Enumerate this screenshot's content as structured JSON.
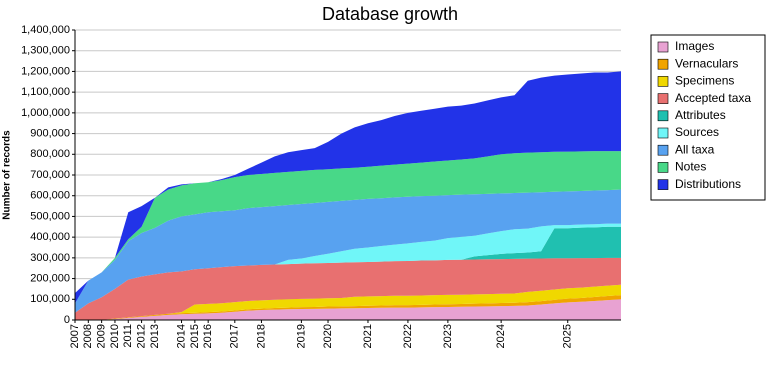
{
  "chart_data": {
    "type": "stacked-area",
    "title": "Database growth",
    "y_label": "Number of records",
    "categories": [
      "2007",
      "2008",
      "2009",
      "2010",
      "2011",
      "2012",
      "2013",
      null,
      "2014",
      "2015",
      "2016",
      null,
      "2017",
      null,
      "2018",
      null,
      null,
      "2019",
      null,
      "2020",
      null,
      null,
      "2021",
      null,
      null,
      "2022",
      null,
      null,
      "2023",
      null,
      null,
      null,
      "2024",
      null,
      null,
      null,
      null,
      "2025",
      null,
      null,
      null,
      null
    ],
    "ylim": [
      0,
      1400000
    ],
    "yticks": [
      0,
      {
        "value": 100000,
        "label": "100,000"
      },
      {
        "value": 200000,
        "label": "200,000"
      },
      {
        "value": 300000,
        "label": "300,000"
      },
      {
        "value": 400000,
        "label": "400,000"
      },
      {
        "value": 500000,
        "label": "500,000"
      },
      {
        "value": 600000,
        "label": "600,000"
      },
      {
        "value": 700000,
        "label": "700,000"
      },
      {
        "value": 800000,
        "label": "800,000"
      },
      {
        "value": 900000,
        "label": "900,000"
      },
      {
        "value": 1000000,
        "label": "1,000,000"
      },
      {
        "value": 1100000,
        "label": "1,100,000"
      },
      {
        "value": 1200000,
        "label": "1,200,000"
      },
      {
        "value": 1300000,
        "label": "1,300,000"
      },
      {
        "value": 1400000,
        "label": "1,400,000"
      }
    ],
    "grid": true,
    "legend": "right",
    "series": [
      {
        "name": "Images",
        "color": "#e8a2d2",
        "values": [
          0,
          0,
          0,
          5000,
          10000,
          15000,
          20000,
          25000,
          28000,
          30000,
          32000,
          35000,
          40000,
          45000,
          48000,
          50000,
          52000,
          53000,
          54000,
          55000,
          56000,
          57000,
          58000,
          59000,
          60000,
          60000,
          61000,
          62000,
          63000,
          64000,
          65000,
          66000,
          67000,
          68000,
          70000,
          75000,
          80000,
          85000,
          88000,
          92000,
          96000,
          100000
        ]
      },
      {
        "name": "Vernaculars",
        "color": "#f0a400",
        "values": [
          0,
          0,
          0,
          2000,
          3000,
          4000,
          5000,
          5000,
          5000,
          5000,
          6000,
          6000,
          6000,
          7000,
          7000,
          8000,
          8000,
          9000,
          9000,
          10000,
          10000,
          10000,
          11000,
          11000,
          12000,
          12000,
          12000,
          13000,
          13000,
          13000,
          14000,
          14000,
          15000,
          15000,
          16000,
          16000,
          17000,
          18000,
          18000,
          19000,
          20000,
          20000
        ]
      },
      {
        "name": "Specimens",
        "color": "#f0d800",
        "values": [
          0,
          0,
          0,
          0,
          0,
          0,
          0,
          0,
          5000,
          40000,
          40000,
          40000,
          40000,
          40000,
          40000,
          40000,
          40000,
          40000,
          40000,
          40000,
          40000,
          45000,
          45000,
          45000,
          45000,
          45000,
          45000,
          45000,
          45000,
          45000,
          45000,
          45000,
          45000,
          45000,
          50000,
          50000,
          50000,
          50000,
          50000,
          50000,
          50000,
          50000
        ]
      },
      {
        "name": "Accepted taxa",
        "color": "#e87070",
        "values": [
          35000,
          80000,
          110000,
          143000,
          182000,
          191000,
          195000,
          200000,
          197000,
          170000,
          172000,
          174000,
          174000,
          171000,
          171000,
          170000,
          170000,
          170000,
          171000,
          170000,
          171000,
          167000,
          166000,
          167000,
          167000,
          168000,
          169000,
          168000,
          169000,
          169000,
          168000,
          168000,
          167000,
          167000,
          160000,
          156000,
          151000,
          145000,
          143000,
          138000,
          134000,
          130000
        ]
      },
      {
        "name": "Attributes",
        "color": "#20c0b0",
        "values": [
          0,
          0,
          0,
          0,
          0,
          0,
          0,
          0,
          0,
          0,
          0,
          0,
          0,
          0,
          0,
          0,
          0,
          0,
          0,
          0,
          0,
          0,
          0,
          0,
          0,
          0,
          0,
          0,
          0,
          0,
          15000,
          20000,
          25000,
          28000,
          30000,
          35000,
          145000,
          145000,
          147000,
          148000,
          150000,
          150000
        ]
      },
      {
        "name": "Sources",
        "color": "#70f6f8",
        "values": [
          0,
          0,
          0,
          0,
          0,
          0,
          0,
          0,
          0,
          0,
          0,
          0,
          0,
          0,
          0,
          0,
          20000,
          25000,
          35000,
          45000,
          55000,
          65000,
          70000,
          75000,
          80000,
          85000,
          90000,
          95000,
          105000,
          110000,
          100000,
          105000,
          110000,
          115000,
          115000,
          120000,
          15000,
          15000,
          15000,
          15000,
          15000,
          15000
        ]
      },
      {
        "name": "All taxa",
        "color": "#58a2f0",
        "values": [
          45000,
          110000,
          120000,
          140000,
          185000,
          210000,
          225000,
          250000,
          265000,
          265000,
          270000,
          270000,
          270000,
          277000,
          279000,
          282000,
          265000,
          263000,
          256000,
          250000,
          243000,
          236000,
          235000,
          231000,
          228000,
          225000,
          221000,
          217000,
          208000,
          204000,
          200000,
          191000,
          182000,
          175000,
          174000,
          165000,
          161000,
          163000,
          162000,
          163000,
          162000,
          165000
        ]
      },
      {
        "name": "Notes",
        "color": "#48d888",
        "values": [
          0,
          0,
          0,
          10000,
          10000,
          30000,
          145000,
          150000,
          150000,
          150000,
          145000,
          150000,
          160000,
          160000,
          160000,
          160000,
          160000,
          160000,
          160000,
          158000,
          157000,
          155000,
          155000,
          157000,
          158000,
          160000,
          162000,
          165000,
          167000,
          170000,
          173000,
          181000,
          189000,
          192000,
          193000,
          193000,
          193000,
          192000,
          191000,
          190000,
          188000,
          185000
        ]
      },
      {
        "name": "Distributions",
        "color": "#2233e8",
        "values": [
          50000,
          0,
          0,
          0,
          130000,
          100000,
          0,
          10000,
          5000,
          0,
          0,
          5000,
          10000,
          30000,
          55000,
          80000,
          95000,
          100000,
          105000,
          132000,
          168000,
          195000,
          210000,
          220000,
          235000,
          245000,
          250000,
          255000,
          260000,
          260000,
          265000,
          270000,
          275000,
          280000,
          347000,
          360000,
          368000,
          372000,
          376000,
          380000,
          380000,
          385000
        ]
      }
    ]
  }
}
